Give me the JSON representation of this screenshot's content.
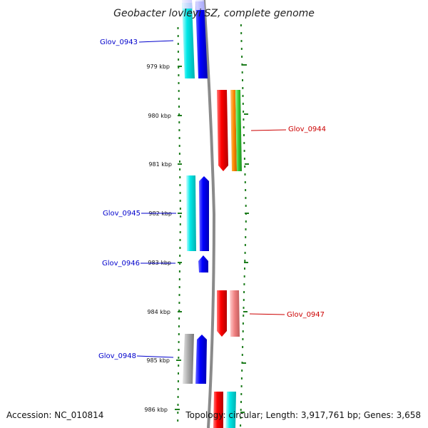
{
  "title": "Geobacter lovleyi SZ, complete genome",
  "footer": {
    "accession": "Accession: NC_010814",
    "topology": "Topology: circular; Length: 3,917,761 bp; Genes: 3,658"
  },
  "ruler": {
    "ticks": [
      {
        "label": "979 kbp"
      },
      {
        "label": "980 kbp"
      },
      {
        "label": "981 kbp"
      },
      {
        "label": "982 kbp"
      },
      {
        "label": "983 kbp"
      },
      {
        "label": "984 kbp"
      },
      {
        "label": "985 kbp"
      },
      {
        "label": "986 kbp"
      }
    ]
  },
  "gene_labels": [
    {
      "label": "Glov_0943",
      "strand": "reverse",
      "color": "#0000cc"
    },
    {
      "label": "Glov_0944",
      "strand": "forward",
      "color": "#cc0000"
    },
    {
      "label": "Glov_0945",
      "strand": "reverse",
      "color": "#0000cc"
    },
    {
      "label": "Glov_0946",
      "strand": "reverse",
      "color": "#0000cc"
    },
    {
      "label": "Glov_0947",
      "strand": "forward",
      "color": "#cc0000"
    },
    {
      "label": "Glov_0948",
      "strand": "reverse",
      "color": "#0000cc"
    }
  ],
  "colors": {
    "backbone": "#888888",
    "tick": "#1e7d1e",
    "reverse_gene": "#0000ff",
    "forward_gene": "#ff0000",
    "reverse_label": "#0000cc",
    "forward_label": "#cc0000",
    "cyan": "#00e5e5",
    "orange": "#ff8c00",
    "green": "#33cc33",
    "pink": "#f08080",
    "gray": "#aaaaaa"
  }
}
